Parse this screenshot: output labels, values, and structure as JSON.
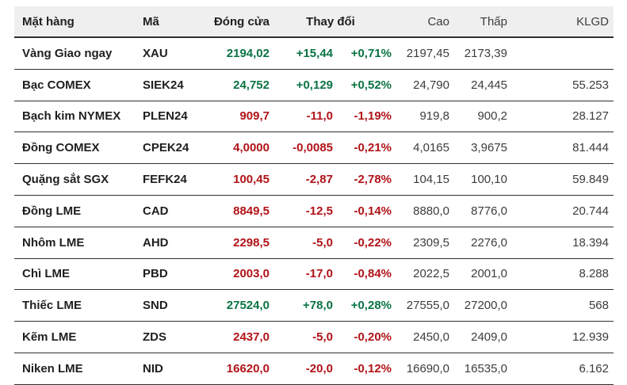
{
  "table": {
    "headers": {
      "commodity": "Mặt hàng",
      "code": "Mã",
      "close": "Đóng cửa",
      "change": "Thay đổi",
      "high": "Cao",
      "low": "Thấp",
      "volume": "KLGD"
    },
    "rows": [
      {
        "commodity": "Vàng Giao ngay",
        "code": "XAU",
        "close": "2194,02",
        "change": "+15,44",
        "change_pct": "+0,71%",
        "high": "2197,45",
        "low": "2173,39",
        "volume": "",
        "direction": "up"
      },
      {
        "commodity": "Bạc COMEX",
        "code": "SIEK24",
        "close": "24,752",
        "change": "+0,129",
        "change_pct": "+0,52%",
        "high": "24,790",
        "low": "24,445",
        "volume": "55.253",
        "direction": "up"
      },
      {
        "commodity": "Bạch kim NYMEX",
        "code": "PLEN24",
        "close": "909,7",
        "change": "-11,0",
        "change_pct": "-1,19%",
        "high": "919,8",
        "low": "900,2",
        "volume": "28.127",
        "direction": "down"
      },
      {
        "commodity": "Đồng COMEX",
        "code": "CPEK24",
        "close": "4,0000",
        "change": "-0,0085",
        "change_pct": "-0,21%",
        "high": "4,0165",
        "low": "3,9675",
        "volume": "81.444",
        "direction": "down"
      },
      {
        "commodity": "Quặng sắt SGX",
        "code": "FEFK24",
        "close": "100,45",
        "change": "-2,87",
        "change_pct": "-2,78%",
        "high": "104,15",
        "low": "100,10",
        "volume": "59.849",
        "direction": "down"
      },
      {
        "commodity": "Đồng LME",
        "code": "CAD",
        "close": "8849,5",
        "change": "-12,5",
        "change_pct": "-0,14%",
        "high": "8880,0",
        "low": "8776,0",
        "volume": "20.744",
        "direction": "down"
      },
      {
        "commodity": "Nhôm LME",
        "code": "AHD",
        "close": "2298,5",
        "change": "-5,0",
        "change_pct": "-0,22%",
        "high": "2309,5",
        "low": "2276,0",
        "volume": "18.394",
        "direction": "down"
      },
      {
        "commodity": "Chì LME",
        "code": "PBD",
        "close": "2003,0",
        "change": "-17,0",
        "change_pct": "-0,84%",
        "high": "2022,5",
        "low": "2001,0",
        "volume": "8.288",
        "direction": "down"
      },
      {
        "commodity": "Thiếc LME",
        "code": "SND",
        "close": "27524,0",
        "change": "+78,0",
        "change_pct": "+0,28%",
        "high": "27555,0",
        "low": "27200,0",
        "volume": "568",
        "direction": "up"
      },
      {
        "commodity": "Kẽm LME",
        "code": "ZDS",
        "close": "2437,0",
        "change": "-5,0",
        "change_pct": "-0,20%",
        "high": "2450,0",
        "low": "2409,0",
        "volume": "12.939",
        "direction": "down"
      },
      {
        "commodity": "Niken LME",
        "code": "NID",
        "close": "16620,0",
        "change": "-20,0",
        "change_pct": "-0,12%",
        "high": "16690,0",
        "low": "16535,0",
        "volume": "6.162",
        "direction": "down"
      }
    ]
  },
  "colors": {
    "up": "#0a7343",
    "down": "#b01318",
    "header_bg": "#f0efef",
    "border": "#2e2e2e",
    "header_text": "#1f1f1f",
    "neutral_value_text": "#3c3c3c",
    "page_bg": "#ffffff"
  }
}
